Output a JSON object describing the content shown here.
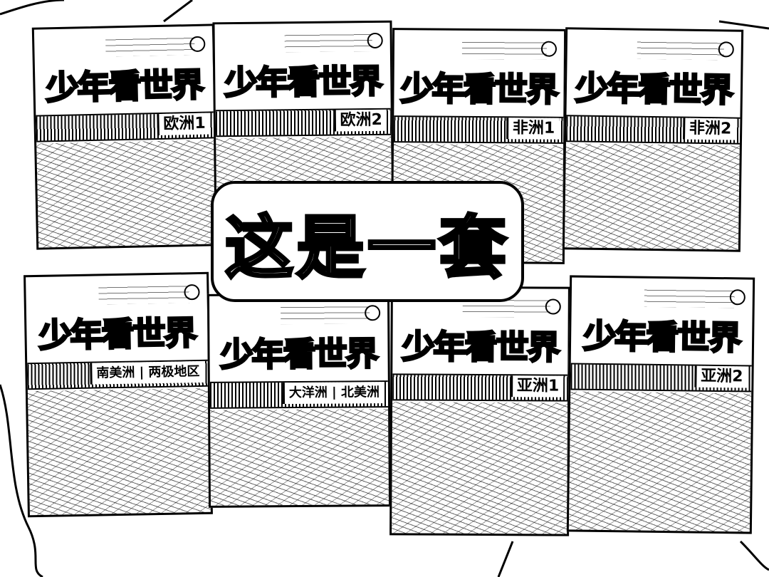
{
  "image": {
    "overlay_caption": "这是一套",
    "books": [
      {
        "series": "少年看世界",
        "volume": "欧洲1"
      },
      {
        "series": "少年看世界",
        "volume": "欧洲2"
      },
      {
        "series": "少年看世界",
        "volume": "非洲1"
      },
      {
        "series": "少年看世界",
        "volume": "非洲2"
      },
      {
        "series": "少年看世界",
        "volume": "南美洲 | 两极地区"
      },
      {
        "series": "少年看世界",
        "volume": "大洋洲 | 北美洲"
      },
      {
        "series": "少年看世界",
        "volume": "亚洲1"
      },
      {
        "series": "少年看世界",
        "volume": "亚洲2"
      }
    ]
  }
}
